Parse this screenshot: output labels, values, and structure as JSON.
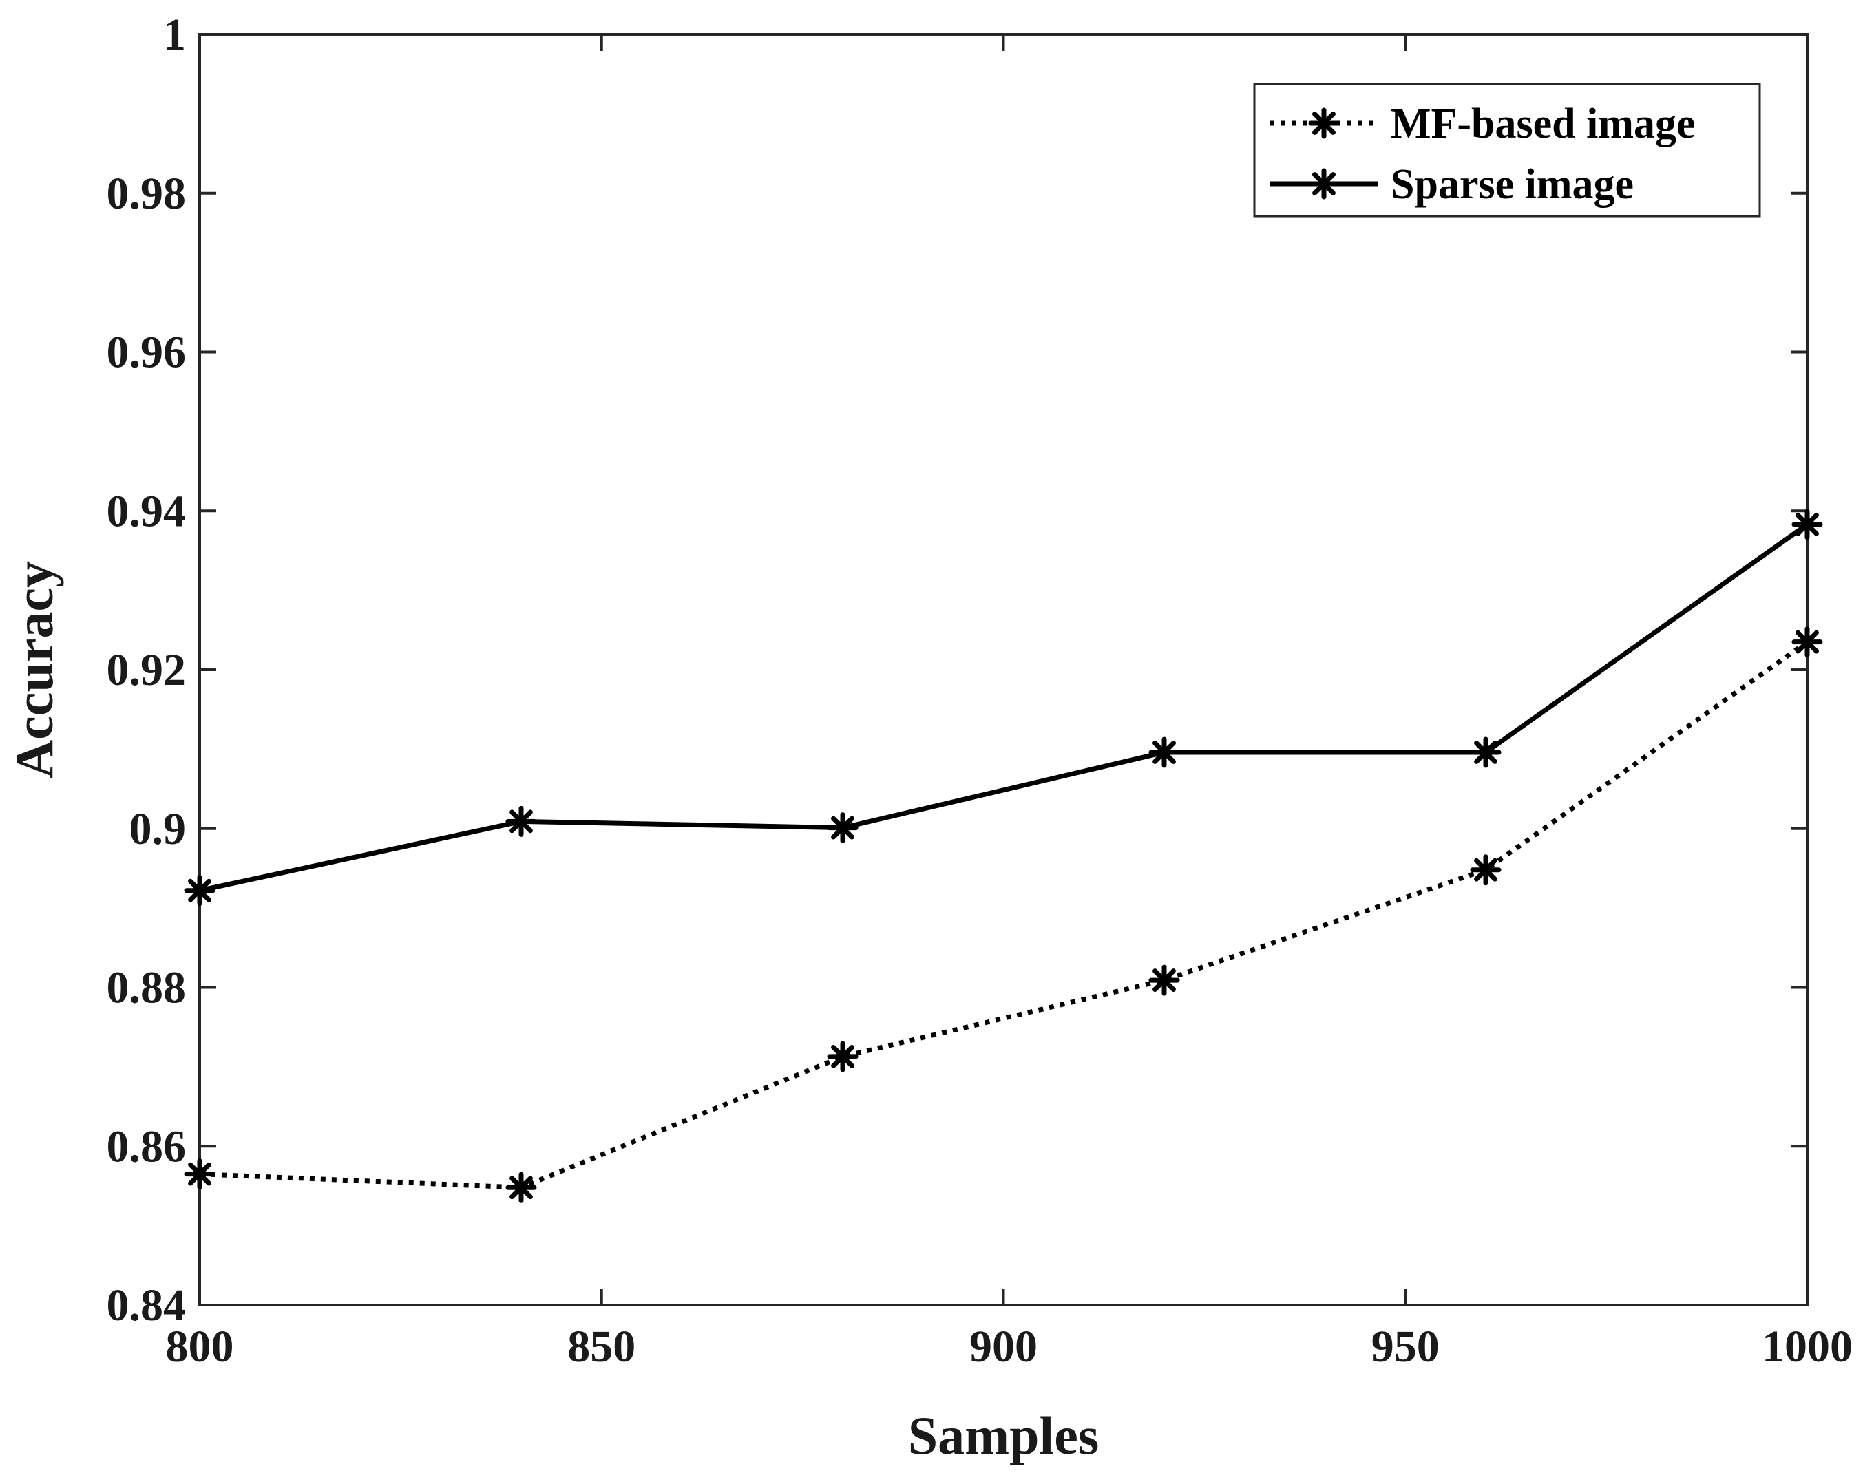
{
  "chart_data": {
    "type": "line",
    "title": "",
    "xlabel": "Samples",
    "ylabel": "Accuracy",
    "xlim": [
      800,
      1000
    ],
    "ylim": [
      0.84,
      1
    ],
    "xticks": [
      800,
      850,
      900,
      950,
      1000
    ],
    "xtick_labels": [
      "800",
      "850",
      "900",
      "950",
      "1000"
    ],
    "yticks": [
      0.84,
      0.86,
      0.88,
      0.9,
      0.92,
      0.94,
      0.96,
      0.98,
      1
    ],
    "ytick_labels": [
      "0.84",
      "0.86",
      "0.88",
      "0.9",
      "0.92",
      "0.94",
      "0.96",
      "0.98",
      "1"
    ],
    "grid": false,
    "legend_position": "top-right",
    "x": [
      800,
      840,
      880,
      920,
      960,
      1000
    ],
    "series": [
      {
        "name": "MF-based image",
        "style": "dotted",
        "marker": "asterisk",
        "color": "#000000",
        "values": [
          0.8565,
          0.8548,
          0.8713,
          0.8809,
          0.8948,
          0.9235
        ]
      },
      {
        "name": "Sparse image",
        "style": "solid",
        "marker": "asterisk",
        "color": "#000000",
        "values": [
          0.8922,
          0.9009,
          0.9001,
          0.9096,
          0.9096,
          0.9383
        ]
      }
    ]
  }
}
